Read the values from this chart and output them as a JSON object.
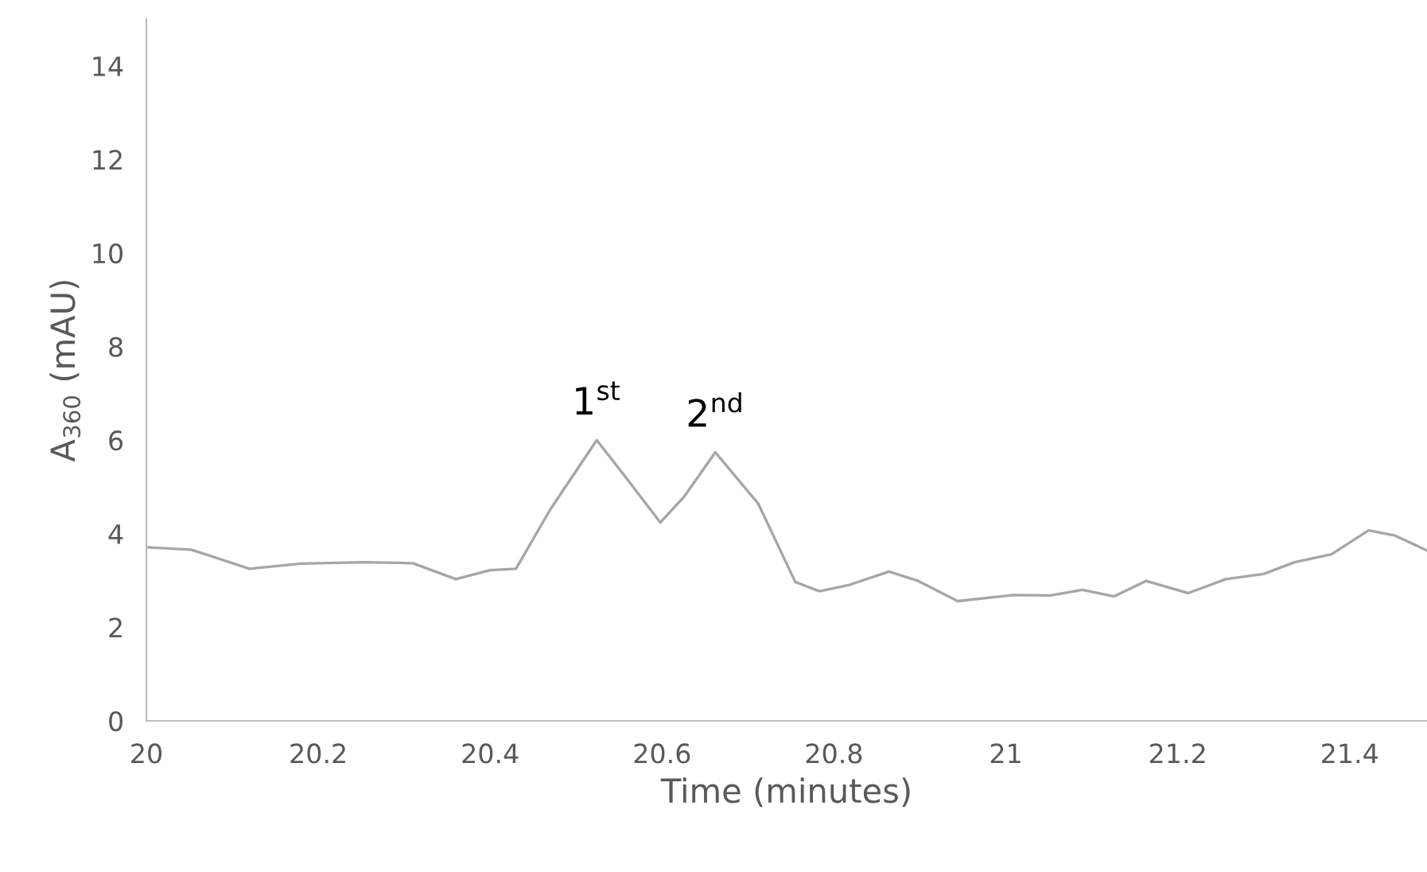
{
  "chart_data": {
    "type": "line",
    "xlabel": "Time (minutes)",
    "ylabel": "A$_{360}$ (mAU)",
    "xlim": [
      20,
      21.49
    ],
    "xticks": [
      20,
      20.2,
      20.4,
      20.6,
      20.8,
      21,
      21.2,
      21.4
    ],
    "ylim": [
      0,
      15
    ],
    "yticks": [
      0,
      2,
      4,
      6,
      8,
      10,
      12,
      14
    ],
    "grid": false,
    "marker": "none",
    "line_style": "solid",
    "series": [
      {
        "color": "#a6a6a6",
        "x": [
          20.0,
          20.052,
          20.12,
          20.18,
          20.255,
          20.31,
          20.36,
          20.4,
          20.43,
          20.47,
          20.524,
          20.558,
          20.598,
          20.626,
          20.662,
          20.712,
          20.755,
          20.783,
          20.817,
          20.864,
          20.898,
          20.944,
          21.009,
          21.052,
          21.089,
          21.126,
          21.163,
          21.212,
          21.256,
          21.3,
          21.336,
          21.379,
          21.422,
          21.453,
          21.49
        ],
        "values": [
          3.71,
          3.66,
          3.25,
          3.36,
          3.39,
          3.37,
          3.03,
          3.22,
          3.25,
          4.52,
          6.0,
          5.2,
          4.24,
          4.8,
          5.74,
          4.64,
          2.97,
          2.77,
          2.9,
          3.19,
          2.99,
          2.56,
          2.69,
          2.68,
          2.8,
          2.66,
          2.99,
          2.73,
          3.03,
          3.14,
          3.39,
          3.56,
          4.07,
          3.96,
          3.64
        ]
      }
    ],
    "annotations": [
      {
        "text": "1$^{st}$",
        "x": 20.524,
        "y": 6.0
      },
      {
        "text": "2$^{nd}$",
        "x": 20.662,
        "y": 5.74
      }
    ]
  }
}
